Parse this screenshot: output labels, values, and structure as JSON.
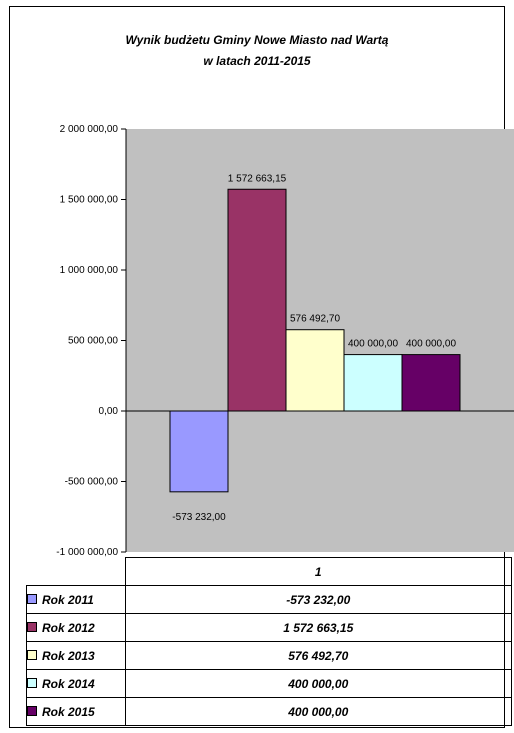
{
  "chart_data": {
    "type": "bar",
    "title": "Wynik budżetu Gminy Nowe Miasto nad Wartą",
    "subtitle": "w latach 2011-2015",
    "categories": [
      "1"
    ],
    "ylim": [
      -1000000,
      2000000
    ],
    "ytick_values": [
      -1000000,
      -500000,
      0,
      500000,
      1000000,
      1500000,
      2000000
    ],
    "ytick_labels": [
      "-1 000 000,00",
      "-500 000,00",
      "0,00",
      "500 000,00",
      "1 000 000,00",
      "1 500 000,00",
      "2 000 000,00"
    ],
    "grid": false,
    "plot_background": "#c0c0c0",
    "legend_placement": "data table below chart",
    "series": [
      {
        "name": "Rok 2011",
        "values": [
          -573232.0
        ],
        "label": "-573 232,00",
        "color": "#9999ff"
      },
      {
        "name": "Rok 2012",
        "values": [
          1572663.15
        ],
        "label": "1 572 663,15",
        "color": "#993366"
      },
      {
        "name": "Rok 2013",
        "values": [
          576492.7
        ],
        "label": "576 492,70",
        "color": "#ffffcc"
      },
      {
        "name": "Rok 2014",
        "values": [
          400000.0
        ],
        "label": "400 000,00",
        "color": "#ccffff"
      },
      {
        "name": "Rok 2015",
        "values": [
          400000.0
        ],
        "label": "400 000,00",
        "color": "#660066"
      }
    ]
  }
}
